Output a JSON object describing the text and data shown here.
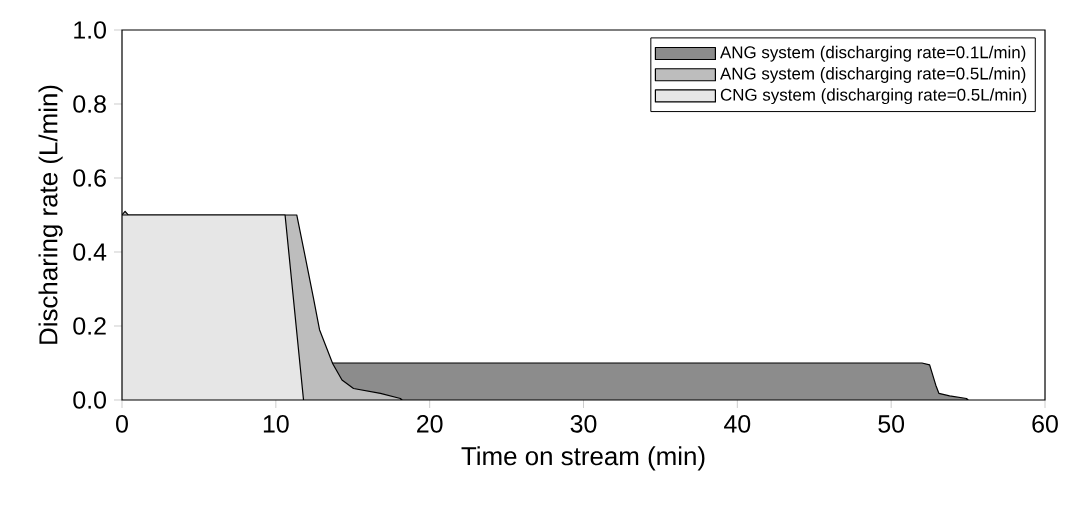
{
  "chart_data": {
    "type": "area",
    "xlabel": "Time on stream (min)",
    "ylabel": "Discharing rate (L/min)",
    "xlim": [
      0,
      60
    ],
    "xticks": [
      0,
      10,
      20,
      30,
      40,
      50,
      60
    ],
    "ylim": [
      0,
      1
    ],
    "yticks": [
      {
        "value": 0,
        "label": "0.0"
      },
      {
        "value": 0.2,
        "label": "0.2"
      },
      {
        "value": 0.4,
        "label": "0.4"
      },
      {
        "value": 0.6,
        "label": "0.6"
      },
      {
        "value": 0.8,
        "label": "0.8"
      },
      {
        "value": 1,
        "label": "1.0"
      }
    ],
    "legend": "top right",
    "grid": false,
    "series": [
      {
        "name": "ANG system (discharging rate=0.1L/min)",
        "color": "#8c8c8c",
        "x": [
          0,
          52,
          52.5,
          52.9,
          53.1,
          53.8,
          54.9,
          55
        ],
        "values": [
          0.1,
          0.1,
          0.095,
          0.04,
          0.018,
          0.011,
          0.004,
          0
        ]
      },
      {
        "name": "ANG system (discharging rate=0.5L/min)",
        "color": "#bdbdbd",
        "x": [
          0,
          0.2,
          0.4,
          11.36,
          11.8,
          12.44,
          12.84,
          13.7,
          14.3,
          15.05,
          16.8,
          18.1,
          18.2
        ],
        "values": [
          0.5,
          0.51,
          0.5,
          0.5,
          0.41,
          0.277,
          0.19,
          0.098,
          0.054,
          0.031,
          0.018,
          0.004,
          0
        ]
      },
      {
        "name": "CNG system (discharging rate=0.5L/min)",
        "color": "#e6e6e6",
        "x": [
          0,
          10.6,
          11.8
        ],
        "values": [
          0.5,
          0.5,
          0
        ]
      }
    ]
  }
}
